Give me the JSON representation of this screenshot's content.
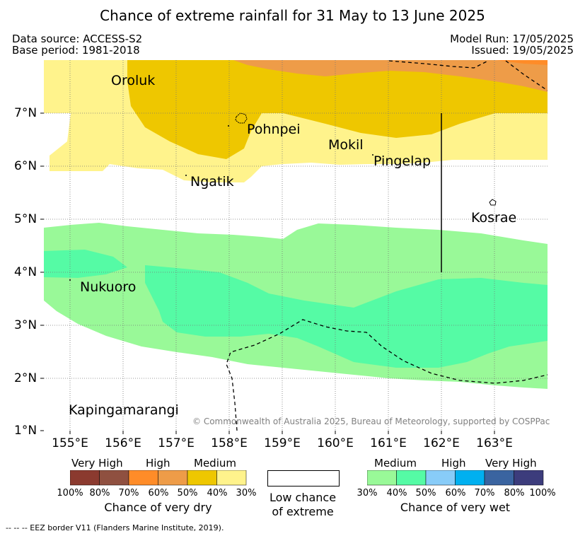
{
  "header": {
    "title": "Chance of extreme rainfall for 31 May to 13 June 2025",
    "data_source": "Data source: ACCESS-S2",
    "base_period": "Base period: 1981-2018",
    "model_run": "Model Run: 17/05/2025",
    "issued": "Issued: 19/05/2025"
  },
  "map": {
    "lon_ticks": [
      "155°E",
      "156°E",
      "157°E",
      "158°E",
      "159°E",
      "160°E",
      "161°E",
      "162°E",
      "163°E"
    ],
    "lat_ticks": [
      "7°N",
      "6°N",
      "5°N",
      "4°N",
      "3°N",
      "2°N",
      "1°N"
    ],
    "places": {
      "oroluk": "Oroluk",
      "pohnpei": "Pohnpei",
      "mokil": "Mokil",
      "pingelap": "Pingelap",
      "ngatik": "Ngatik",
      "kosrae": "Kosrae",
      "nukuoro": "Nukuoro",
      "kapingamarangi": "Kapingamarangi"
    },
    "copyright": "© Commonwealth of Australia 2025, Bureau of Meteorology, supported by COSPPac"
  },
  "legend": {
    "dry": {
      "categories": [
        "Very High",
        "High",
        "Medium"
      ],
      "percentages": [
        "100%",
        "80%",
        "70%",
        "60%",
        "50%",
        "40%",
        "30%"
      ],
      "title": "Chance of very dry",
      "colors": [
        "#8b3a2f",
        "#8f5040",
        "#ff8c28",
        "#ee9c48",
        "#eec700",
        "#fff38c"
      ]
    },
    "low": {
      "line1": "Low chance",
      "line2": "of extreme"
    },
    "wet": {
      "categories": [
        "Medium",
        "High",
        "Very High"
      ],
      "percentages": [
        "30%",
        "40%",
        "50%",
        "60%",
        "70%",
        "80%",
        "100%"
      ],
      "title": "Chance of very wet",
      "colors": [
        "#99f998",
        "#55fba5",
        "#88ccf8",
        "#00b0f0",
        "#3a64a0",
        "#3c3c7c"
      ]
    }
  },
  "footer": {
    "text": "--  --  -- EEZ border V11 (Flanders Marine Institute, 2019)."
  }
}
